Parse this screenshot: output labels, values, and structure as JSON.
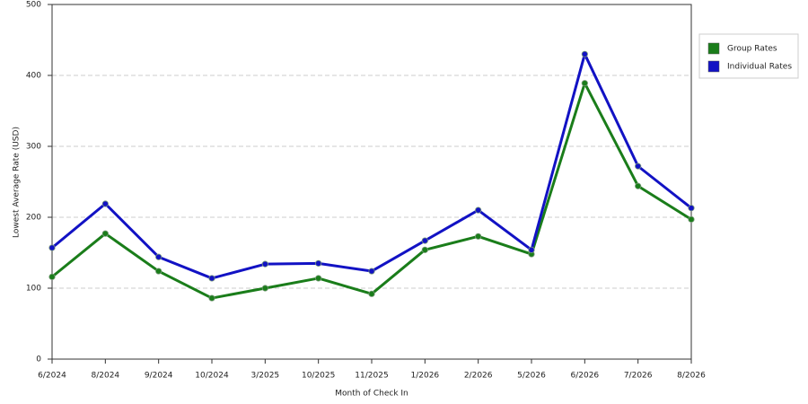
{
  "chart_data": {
    "type": "line",
    "categories": [
      "6/2024",
      "8/2024",
      "9/2024",
      "10/2024",
      "3/2025",
      "10/2025",
      "11/2025",
      "1/2026",
      "2/2026",
      "5/2026",
      "6/2026",
      "7/2026",
      "8/2026"
    ],
    "series": [
      {
        "name": "Group Rates",
        "color": "#1a7d1a",
        "values": [
          116,
          177,
          124,
          86,
          100,
          114,
          92,
          154,
          173,
          148,
          389,
          244,
          197
        ]
      },
      {
        "name": "Individual Rates",
        "color": "#1212c4",
        "values": [
          157,
          219,
          144,
          114,
          134,
          135,
          124,
          167,
          210,
          154,
          430,
          272,
          213
        ]
      }
    ],
    "xlabel": "Month of Check In",
    "ylabel": "Lowest Average Rate (USD)",
    "ylim": [
      0,
      500
    ],
    "yticks": [
      0,
      100,
      200,
      300,
      400,
      500
    ],
    "grid": true,
    "legend": "right"
  }
}
